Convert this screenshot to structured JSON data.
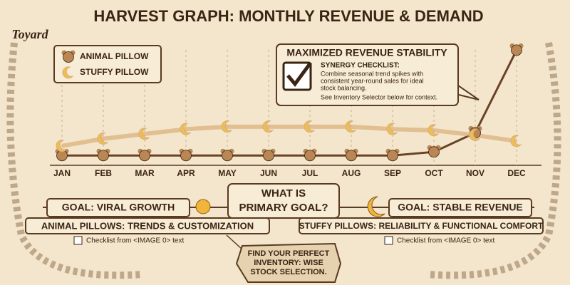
{
  "chart_data": {
    "type": "line",
    "title": "HARVEST GRAPH: MONTHLY REVENUE & DEMAND",
    "categories": [
      "JAN",
      "FEB",
      "MAR",
      "APR",
      "MAY",
      "JUN",
      "JUL",
      "AUG",
      "SEP",
      "OCT",
      "NOV",
      "DEC"
    ],
    "series": [
      {
        "name": "ANIMAL PILLOW",
        "color": "#6b4226",
        "values": [
          7,
          7,
          7,
          7,
          7,
          7,
          7,
          7,
          7,
          10,
          26,
          95
        ]
      },
      {
        "name": "STUFFY PILLOW",
        "color": "#d8ae78",
        "values": [
          15,
          21,
          25,
          29,
          31,
          31,
          31,
          31,
          29,
          28,
          24,
          19
        ]
      }
    ],
    "ylim": [
      0,
      100
    ],
    "legend": "top-left"
  },
  "logo": "Toyard",
  "callout": {
    "title": "MAXIMIZED REVENUE STABILITY",
    "heading": "SYNERGY CHECKLIST:",
    "lines": [
      "Combine seasonal trend spikes with",
      "consistent year-round sales for ideal",
      "stock balancing.",
      "See Inventory Selector below for context."
    ]
  },
  "goals": {
    "left": "GOAL: VIRAL GROWTH",
    "center": [
      "WHAT IS",
      "PRIMARY GOAL?"
    ],
    "right": "GOAL: STABLE REVENUE"
  },
  "products": {
    "left": "ANIMAL PILLOWS: TRENDS & CUSTOMIZATION",
    "right": "STUFFY PILLOWS: RELIABILITY & FUNCTIONAL COMFORT",
    "left_note": "Checklist from <IMAGE 0> text",
    "right_note": "Checklist from <IMAGE 0> text"
  },
  "tag": [
    "FIND YOUR PERFECT",
    "INVENTORY: WISE",
    "STOCK SELECTION."
  ]
}
